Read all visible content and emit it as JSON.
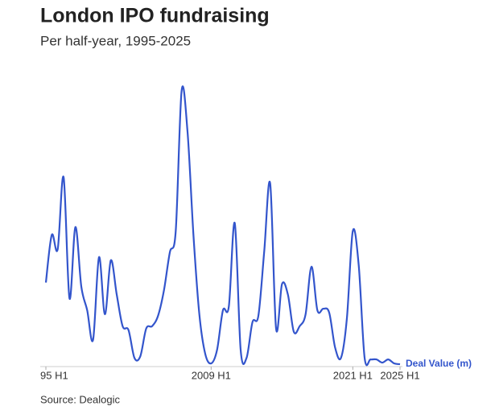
{
  "chart_data": {
    "type": "line",
    "title": "London IPO fundraising",
    "subtitle": "Per half-year, 1995-2025",
    "source": "Source: Dealogic",
    "categories": [
      "95 H1",
      null,
      null,
      null,
      null,
      null,
      null,
      null,
      null,
      null,
      null,
      null,
      null,
      null,
      null,
      null,
      null,
      null,
      null,
      null,
      null,
      null,
      null,
      null,
      null,
      null,
      null,
      null,
      "2009 H1",
      null,
      null,
      null,
      null,
      null,
      null,
      null,
      null,
      null,
      null,
      null,
      null,
      null,
      null,
      null,
      null,
      null,
      null,
      null,
      null,
      null,
      null,
      null,
      "2021 H1",
      null,
      null,
      null,
      null,
      null,
      null,
      null,
      "2025 H1"
    ],
    "series": [
      {
        "name": "Deal Value (m)",
        "color": "#3355cc",
        "values": [
          105,
          165,
          147,
          238,
          85,
          175,
          100,
          70,
          33,
          137,
          65,
          133,
          90,
          50,
          45,
          10,
          12,
          47,
          50,
          63,
          95,
          143,
          170,
          347,
          295,
          165,
          65,
          15,
          3,
          20,
          70,
          75,
          180,
          20,
          10,
          55,
          63,
          145,
          230,
          47,
          103,
          90,
          43,
          50,
          65,
          125,
          70,
          72,
          67,
          23,
          10,
          60,
          170,
          127,
          10,
          8,
          8,
          4,
          8,
          3,
          2
        ]
      }
    ],
    "ylim": [
      0,
      360
    ]
  }
}
